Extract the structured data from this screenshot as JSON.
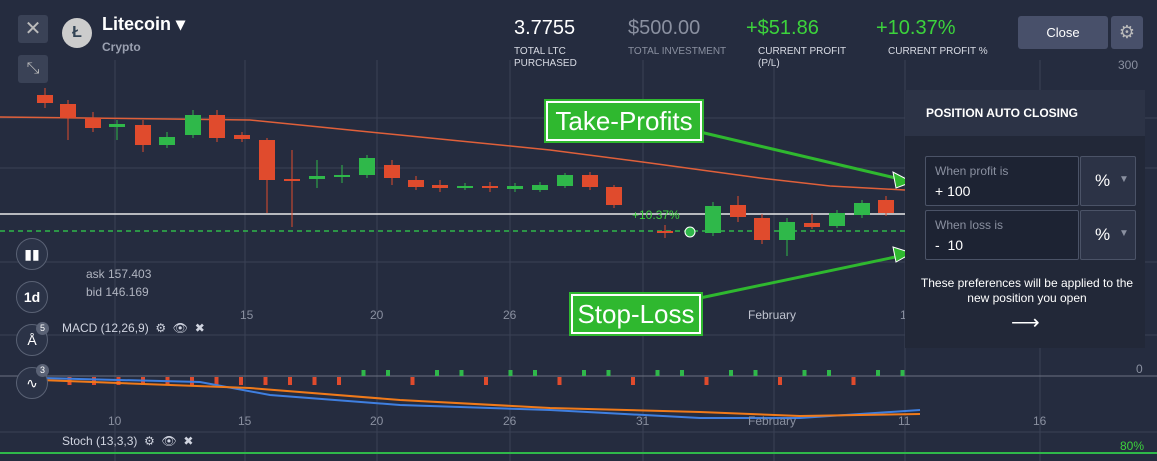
{
  "header": {
    "asset": "Litecoin",
    "asset_type": "Crypto"
  },
  "stats": [
    {
      "value": "3.7755",
      "label": "TOTAL LTC PURCHASED"
    },
    {
      "value": "$500.00",
      "label": "TOTAL INVESTMENT"
    },
    {
      "value": "+$51.86",
      "label": "CURRENT PROFIT (P/L)"
    },
    {
      "value": "+10.37%",
      "label": "CURRENT PROFIT %"
    }
  ],
  "close_button": "Close",
  "chart": {
    "price_axis_label": "300",
    "macd_axis_label": "0",
    "stoch_axis_label": "80%",
    "top_x_labels": [
      "15",
      "20",
      "26",
      "February",
      "1"
    ],
    "bottom_x_labels": [
      "10",
      "15",
      "20",
      "26",
      "31",
      "February",
      "11",
      "16"
    ],
    "ask": "ask 157.403",
    "bid": "bid 146.169",
    "profit_marker": "+10.37%"
  },
  "toolbar": {
    "timeframe": "1d",
    "indicator_count": "5",
    "drawing_count": "3"
  },
  "indicators": [
    "MACD (12,26,9)",
    "Stoch (13,3,3)"
  ],
  "panel": {
    "title": "POSITION AUTO CLOSING",
    "profit_label": "When profit is",
    "profit_value": "+ 100",
    "profit_unit": "%",
    "loss_label": "When loss is",
    "loss_value": "-  10",
    "loss_unit": "%",
    "note": "These preferences will be applied to the new position you open"
  },
  "callouts": {
    "take_profit": "Take-Profits",
    "stop_loss": "Stop-Loss"
  }
}
